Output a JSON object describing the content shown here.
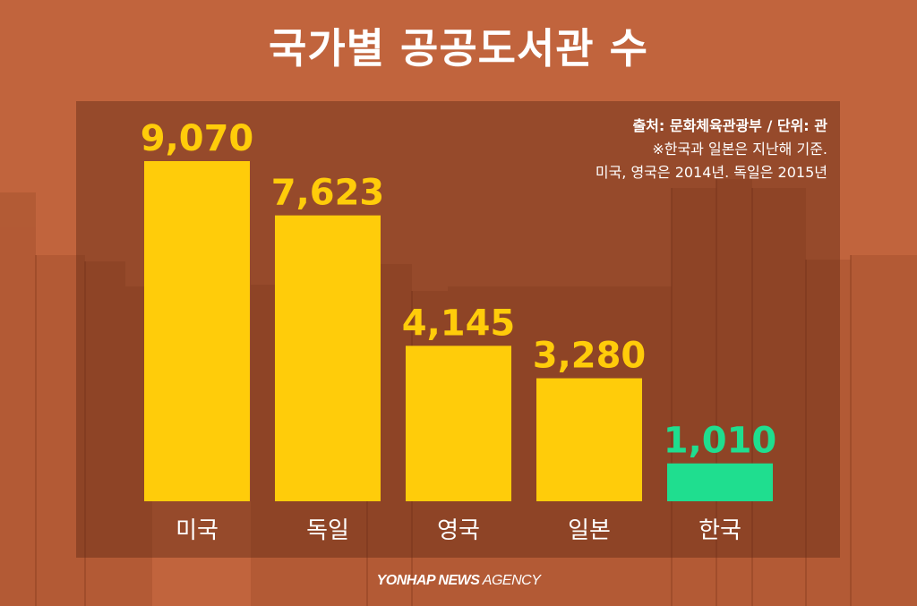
{
  "page": {
    "title": "국가별 공공도서관 수",
    "source_line": "출처: 문화체육관광부 / 단위: 관",
    "note_line1": "※한국과 일본은 지난해 기준.",
    "note_line2": "미국, 영국은 2014년. 독일은 2015년",
    "credit_bold": "YONHAP NEWS",
    "credit_rest": " AGENCY"
  },
  "colors": {
    "background": "#c1643d",
    "bar_default": "#ffcc0a",
    "bar_highlight": "#1fde8f",
    "label_default": "#ffcc0a",
    "label_highlight": "#1fde8f"
  },
  "chart_data": {
    "type": "bar",
    "categories": [
      "미국",
      "독일",
      "영국",
      "일본",
      "한국"
    ],
    "values": [
      9070,
      7623,
      4145,
      3280,
      1010
    ],
    "value_labels": [
      "9,070",
      "7,623",
      "4,145",
      "3,280",
      "1,010"
    ],
    "highlight_category": "한국",
    "ylim": [
      0,
      9070
    ],
    "grid": false,
    "legend": "none"
  }
}
